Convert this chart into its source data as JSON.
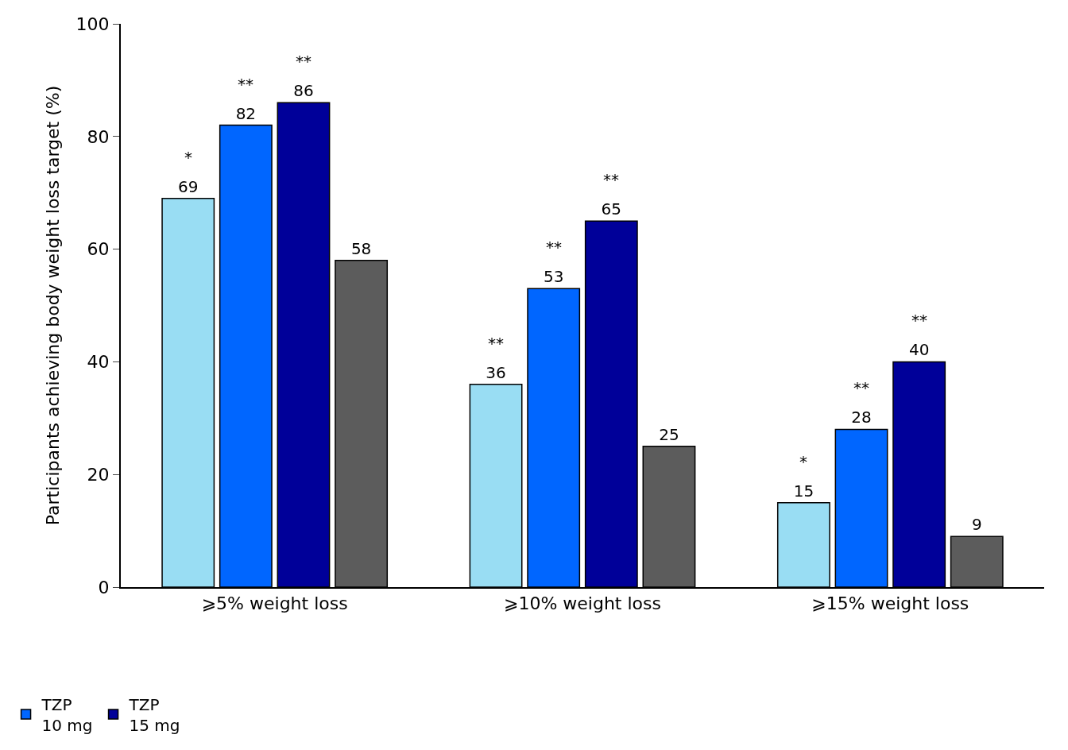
{
  "chart_data": {
    "type": "bar",
    "ylabel": "Participants achieving body weight loss target (%)",
    "categories": [
      "⩾5% weight loss",
      "⩾10% weight loss",
      "⩾15% weight loss"
    ],
    "series": [
      {
        "color": "#99ddf3",
        "values": [
          69,
          36,
          15
        ]
      },
      {
        "name": "TZP\n10 mg",
        "color": "#0066ff",
        "values": [
          82,
          53,
          28
        ]
      },
      {
        "name": "TZP\n15 mg",
        "color": "#000099",
        "values": [
          86,
          65,
          40
        ]
      },
      {
        "color": "#5c5c5c",
        "values": [
          58,
          25,
          9
        ]
      }
    ],
    "data_labels": true,
    "ylim": [
      0,
      100
    ],
    "yticks": [
      0,
      20,
      40,
      60,
      80,
      100
    ],
    "legend": "bottom left",
    "annotations": [
      "*",
      "**",
      "**",
      "**",
      "**",
      "**",
      "*",
      "**",
      "**"
    ]
  }
}
